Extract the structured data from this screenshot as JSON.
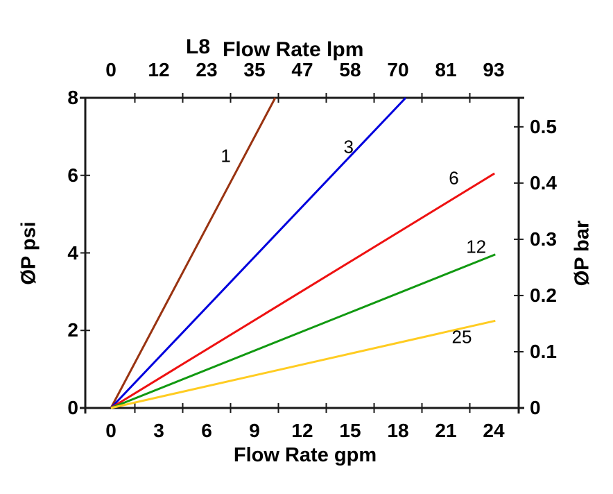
{
  "title": {
    "prefix": "L8",
    "main": "Flow Rate lpm"
  },
  "axes": {
    "top": {
      "tick_labels": [
        "0",
        "12",
        "23",
        "35",
        "47",
        "58",
        "70",
        "81",
        "93"
      ]
    },
    "bottom": {
      "title": "Flow Rate gpm",
      "tick_labels": [
        "0",
        "3",
        "6",
        "9",
        "12",
        "15",
        "18",
        "21",
        "24"
      ]
    },
    "left": {
      "title": "ØP psi",
      "tick_labels": [
        "0",
        "2",
        "4",
        "6",
        "8"
      ]
    },
    "right": {
      "title": "ØP bar",
      "tick_labels": [
        "0",
        "0.1",
        "0.2",
        "0.3",
        "0.4",
        "0.5"
      ]
    }
  },
  "chart_data": {
    "type": "line",
    "title": "L8 Flow Rate lpm",
    "xlabel_bottom": "Flow Rate gpm",
    "xlabel_top": "Flow Rate lpm",
    "ylabel_left": "ØP psi",
    "ylabel_right": "ØP bar",
    "x_range_gpm": [
      0,
      24
    ],
    "y_range_psi": [
      0,
      8
    ],
    "top_axis_lpm_ticks": [
      0,
      12,
      23,
      35,
      47,
      58,
      70,
      81,
      93
    ],
    "right_axis_bar_ticks": [
      0,
      0.1,
      0.2,
      0.3,
      0.4,
      0.5
    ],
    "grid": false,
    "legend": "inline curve labels",
    "axis_color": "#1a1a1a",
    "series": [
      {
        "name": "1",
        "color": "#993311",
        "points_gpm_psi": [
          [
            0,
            0
          ],
          [
            10.3,
            8.0
          ]
        ],
        "label_pos_gpm_psi": [
          7.2,
          6.5
        ]
      },
      {
        "name": "3",
        "color": "#0000DD",
        "points_gpm_psi": [
          [
            0,
            0
          ],
          [
            18.48,
            8.0
          ]
        ],
        "label_pos_gpm_psi": [
          14.9,
          6.73
        ]
      },
      {
        "name": "6",
        "color": "#EE1111",
        "points_gpm_psi": [
          [
            0,
            0
          ],
          [
            24.05,
            6.05
          ]
        ],
        "label_pos_gpm_psi": [
          21.5,
          5.92
        ]
      },
      {
        "name": "12",
        "color": "#119911",
        "points_gpm_psi": [
          [
            0,
            0
          ],
          [
            24.1,
            3.96
          ]
        ],
        "label_pos_gpm_psi": [
          22.9,
          4.15
        ]
      },
      {
        "name": "25",
        "color": "#FFCC22",
        "points_gpm_psi": [
          [
            0,
            0
          ],
          [
            24.1,
            2.25
          ]
        ],
        "label_pos_gpm_psi": [
          22.0,
          1.82
        ]
      }
    ]
  }
}
